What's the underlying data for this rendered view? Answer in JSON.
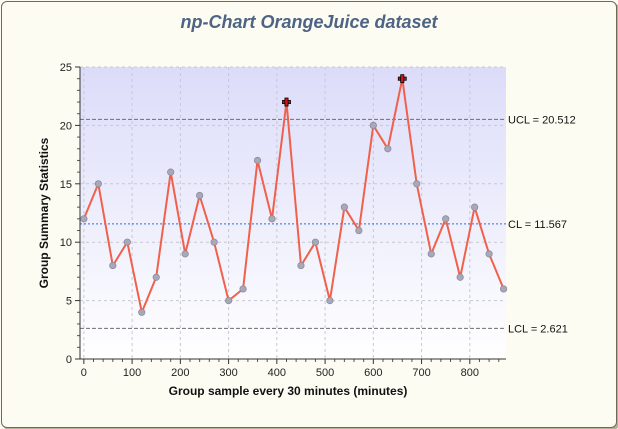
{
  "chart_data": {
    "type": "line",
    "title": "np-Chart OrangeJuice dataset",
    "xlabel": "Group sample every 30 minutes (minutes)",
    "ylabel": "Group Summary Statistics",
    "xlim": [
      -8,
      875
    ],
    "ylim": [
      0,
      25
    ],
    "xticks": [
      "0",
      "100",
      "200",
      "300",
      "400",
      "500",
      "600",
      "700",
      "800"
    ],
    "yticks": [
      "0",
      "5",
      "10",
      "15",
      "20",
      "25"
    ],
    "x": [
      0,
      30,
      60,
      90,
      120,
      150,
      180,
      210,
      240,
      270,
      300,
      330,
      360,
      390,
      420,
      450,
      480,
      510,
      540,
      570,
      600,
      630,
      660,
      690,
      720,
      750,
      780,
      810,
      840,
      870
    ],
    "values": [
      12,
      15,
      8,
      10,
      4,
      7,
      16,
      9,
      14,
      10,
      5,
      6,
      17,
      12,
      22,
      8,
      10,
      5,
      13,
      11,
      20,
      18,
      24,
      15,
      9,
      12,
      7,
      13,
      9,
      6
    ],
    "out_of_control_x": [
      420,
      660
    ],
    "limits": {
      "ucl": {
        "value": 20.512,
        "label": "UCL = 20.512"
      },
      "cl": {
        "value": 11.567,
        "label": "CL = 11.567"
      },
      "lcl": {
        "value": 2.621,
        "label": "LCL = 2.621"
      }
    },
    "grid": true,
    "colors": {
      "line": "#f0604a",
      "marker": "#a8a8b8",
      "marker_stroke": "#8c8c9c",
      "out_marker": "#d41414",
      "cl": "#2f6fd6",
      "limit": "#6f6f6f",
      "plot_bg_top": "#dcdcfa",
      "plot_bg_bottom": "#ffffff"
    }
  }
}
